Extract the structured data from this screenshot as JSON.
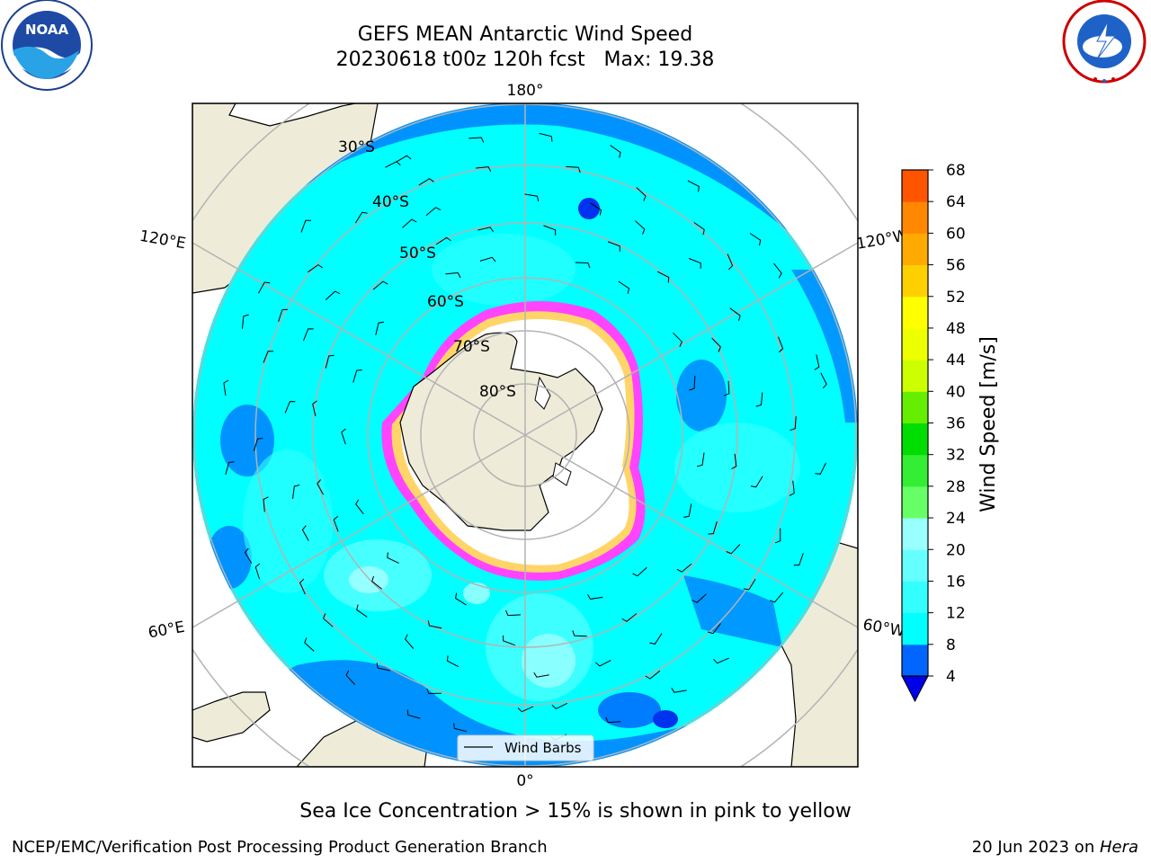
{
  "header": {
    "title_line1": "GEFS MEAN Antarctic Wind Speed",
    "title_line2": "20230618 t00z 120h fcst   Max: 19.38",
    "logos": {
      "left": "noaa-logo",
      "right": "national-weather-service-logo"
    }
  },
  "map": {
    "projection": "south-polar-stereographic",
    "longitude_labels": {
      "top": "180°",
      "bottom": "0°",
      "upper_left": "120°E",
      "upper_right": "120°W",
      "lower_left": "60°E",
      "lower_right": "60°W"
    },
    "latitude_labels": [
      "30°S",
      "40°S",
      "50°S",
      "60°S",
      "70°S",
      "80°S"
    ],
    "legend_label": "Wind Barbs",
    "colors": {
      "land": "#eeecd9",
      "sea_ice_low": "#ff44ff",
      "sea_ice_high": "#ffd56a",
      "grid": "#b3b3b3"
    }
  },
  "colorbar": {
    "label": "Wind Speed [m/s]",
    "ticks": [
      "4",
      "8",
      "12",
      "16",
      "20",
      "24",
      "28",
      "32",
      "36",
      "40",
      "44",
      "48",
      "52",
      "56",
      "60",
      "64",
      "68"
    ],
    "colors": [
      "#0000e6",
      "#0066ff",
      "#00ffff",
      "#33ffff",
      "#66ffff",
      "#99ffff",
      "#66ff66",
      "#33ee33",
      "#00dd00",
      "#66ee00",
      "#ccff00",
      "#eeff00",
      "#ffff00",
      "#ffd000",
      "#ffaa00",
      "#ff8800",
      "#ff5500",
      "#ff2200",
      "#ff0000"
    ]
  },
  "caption": "Sea Ice Concentration > 15% is shown in pink to yellow",
  "footer": {
    "left": "NCEP/EMC/Verification Post Processing Product Generation Branch",
    "date": "20 Jun 2023 on ",
    "host": "Hera"
  },
  "chart_data": {
    "type": "heatmap",
    "title": "GEFS MEAN Antarctic Wind Speed",
    "subtitle": "20230618 t00z 120h fcst   Max: 19.38",
    "variable": "Wind Speed",
    "units": "m/s",
    "max": 19.38,
    "colorbar_bounds": [
      4,
      8,
      12,
      16,
      20,
      24,
      28,
      32,
      36,
      40,
      44,
      48,
      52,
      56,
      60,
      64,
      68
    ],
    "colorbar_extend": "min",
    "overlay": "Sea Ice Concentration > 15%",
    "legend": "Wind Barbs",
    "grid": true
  }
}
